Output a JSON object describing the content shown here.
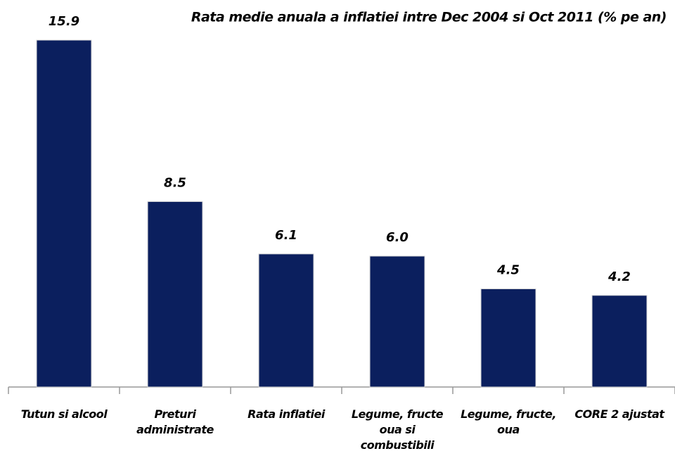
{
  "chart_data": {
    "type": "bar",
    "title": "Rata medie anuala a inflatiei intre Dec 2004 si Oct 2011 (% pe an)",
    "categories": [
      "Tutun si alcool",
      "Preturi administrate",
      "Rata inflatiei",
      "Legume, fructe oua si combustibili",
      "Legume, fructe, oua",
      "CORE 2 ajustat"
    ],
    "values": [
      15.9,
      8.5,
      6.1,
      6.0,
      4.5,
      4.2
    ],
    "value_labels": [
      "15.9",
      "8.5",
      "6.1",
      "6.0",
      "4.5",
      "4.2"
    ],
    "color": "#0b1f5e"
  }
}
